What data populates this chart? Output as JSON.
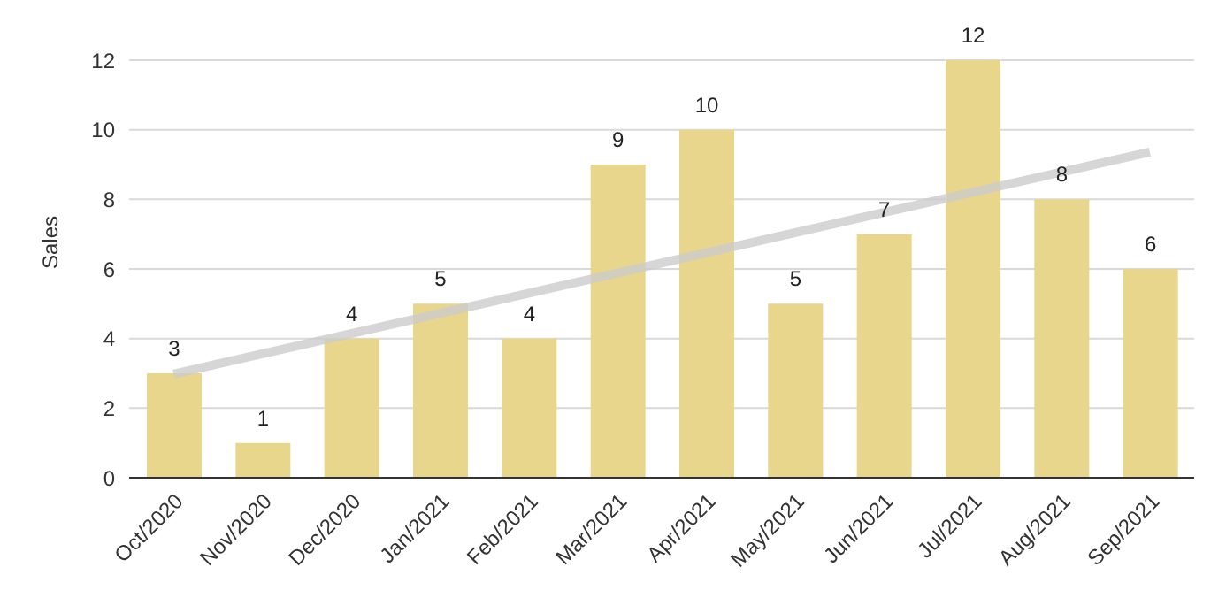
{
  "chart_data": {
    "type": "bar",
    "ylabel": "Sales",
    "categories": [
      "Oct/2020",
      "Nov/2020",
      "Dec/2020",
      "Jan/2021",
      "Feb/2021",
      "Mar/2021",
      "Apr/2021",
      "May/2021",
      "Jun/2021",
      "Jul/2021",
      "Aug/2021",
      "Sep/2021"
    ],
    "series": [
      {
        "color": "#e8d68d",
        "values": [
          3,
          1,
          4,
          5,
          4,
          9,
          10,
          5,
          7,
          12,
          8,
          6
        ],
        "value_labels": [
          "3",
          "1",
          "4",
          "5",
          "4",
          "9",
          "10",
          "5",
          "7",
          "12",
          "8",
          "6"
        ]
      },
      {
        "type": "line",
        "color": "#cccccc",
        "x": [
          "Oct/2020",
          "Sep/2021"
        ],
        "values": [
          2.98,
          9.36
        ]
      }
    ],
    "ylim": [
      0,
      12
    ],
    "yticks": [
      0,
      2,
      4,
      6,
      8,
      10,
      12
    ],
    "grid": "y",
    "legend": false,
    "marker": "none"
  }
}
